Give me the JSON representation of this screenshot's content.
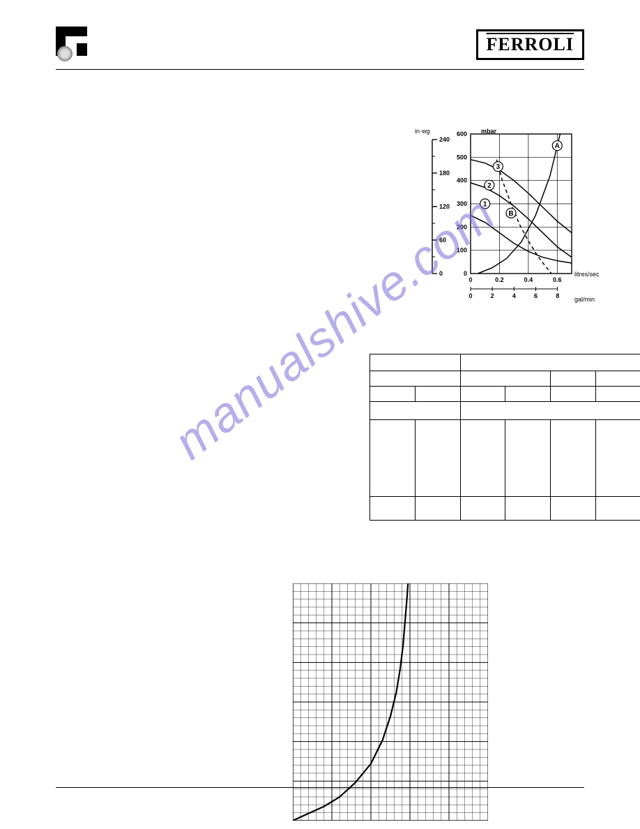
{
  "brand": "FERROLI",
  "watermark": "manualshive.com",
  "pump_chart": {
    "type": "line",
    "left_axis": {
      "label": "in·wg",
      "ticks": [
        0,
        60,
        120,
        180,
        240
      ]
    },
    "y_axis": {
      "label": "mbar",
      "ticks": [
        0,
        100,
        200,
        300,
        400,
        500,
        600
      ],
      "ylim": [
        0,
        600
      ]
    },
    "x_axis_top": {
      "label": "litres/sec",
      "ticks": [
        0,
        0.2,
        0.4,
        0.6
      ],
      "xlim": [
        0,
        0.7
      ]
    },
    "x_axis_bottom": {
      "label": "gal/min",
      "ticks": [
        0,
        2,
        4,
        6,
        8
      ]
    },
    "curves": {
      "1": {
        "name": "1",
        "points": [
          [
            0,
            250
          ],
          [
            0.1,
            220
          ],
          [
            0.2,
            175
          ],
          [
            0.3,
            130
          ],
          [
            0.4,
            95
          ],
          [
            0.5,
            70
          ],
          [
            0.6,
            55
          ],
          [
            0.7,
            45
          ]
        ],
        "color": "#000",
        "width": 1.5
      },
      "2": {
        "name": "2",
        "points": [
          [
            0,
            390
          ],
          [
            0.1,
            370
          ],
          [
            0.2,
            335
          ],
          [
            0.3,
            290
          ],
          [
            0.4,
            235
          ],
          [
            0.5,
            175
          ],
          [
            0.6,
            115
          ],
          [
            0.7,
            70
          ]
        ],
        "color": "#000",
        "width": 1.5
      },
      "3": {
        "name": "3",
        "points": [
          [
            0,
            490
          ],
          [
            0.1,
            475
          ],
          [
            0.2,
            445
          ],
          [
            0.3,
            400
          ],
          [
            0.4,
            345
          ],
          [
            0.5,
            285
          ],
          [
            0.6,
            225
          ],
          [
            0.7,
            175
          ]
        ],
        "color": "#000",
        "width": 1.5
      },
      "A": {
        "name": "A",
        "points": [
          [
            0.05,
            0
          ],
          [
            0.15,
            25
          ],
          [
            0.25,
            65
          ],
          [
            0.35,
            135
          ],
          [
            0.45,
            250
          ],
          [
            0.55,
            420
          ],
          [
            0.62,
            600
          ]
        ],
        "color": "#000",
        "width": 1.5
      },
      "B": {
        "name": "B",
        "points": [
          [
            0.18,
            490
          ],
          [
            0.22,
            400
          ],
          [
            0.28,
            300
          ],
          [
            0.34,
            210
          ],
          [
            0.4,
            140
          ],
          [
            0.46,
            80
          ],
          [
            0.52,
            30
          ],
          [
            0.56,
            0
          ]
        ],
        "color": "#000",
        "width": 1.5,
        "dash": "5,4"
      }
    },
    "label_positions": {
      "1": [
        0.1,
        300
      ],
      "2": [
        0.13,
        380
      ],
      "3": [
        0.19,
        460
      ],
      "A": [
        0.6,
        550
      ],
      "B": [
        0.28,
        260
      ]
    },
    "background_color": "#ffffff",
    "grid_color": "#000000",
    "font_size": 9
  },
  "table": {
    "header_row1": [
      "",
      "",
      "",
      "",
      "",
      ""
    ],
    "header_row2": [
      "",
      "",
      "",
      "",
      "",
      ""
    ],
    "header_row3": [
      "",
      "",
      "",
      "",
      "",
      ""
    ],
    "body_rows": [
      [
        "",
        "",
        "",
        "",
        "",
        ""
      ],
      [
        "",
        "",
        "",
        "",
        "",
        ""
      ]
    ],
    "col_count": 6,
    "border_color": "#000000",
    "font_size": 10
  },
  "flow_chart": {
    "type": "line",
    "grid": {
      "cols": 25,
      "rows": 30,
      "color": "#000000",
      "minor_every": 1,
      "major_every": 5,
      "minor_width": 0.4,
      "major_width": 1.0
    },
    "curve": {
      "points": [
        [
          0.0,
          0.0
        ],
        [
          0.08,
          0.03
        ],
        [
          0.16,
          0.06
        ],
        [
          0.24,
          0.1
        ],
        [
          0.32,
          0.16
        ],
        [
          0.4,
          0.24
        ],
        [
          0.46,
          0.34
        ],
        [
          0.5,
          0.44
        ],
        [
          0.53,
          0.54
        ],
        [
          0.55,
          0.64
        ],
        [
          0.565,
          0.74
        ],
        [
          0.575,
          0.84
        ],
        [
          0.585,
          0.94
        ],
        [
          0.59,
          1.0
        ]
      ],
      "color": "#000000",
      "width": 2.2
    },
    "xlim": [
      0,
      1
    ],
    "ylim": [
      0,
      1
    ],
    "background_color": "#ffffff"
  }
}
